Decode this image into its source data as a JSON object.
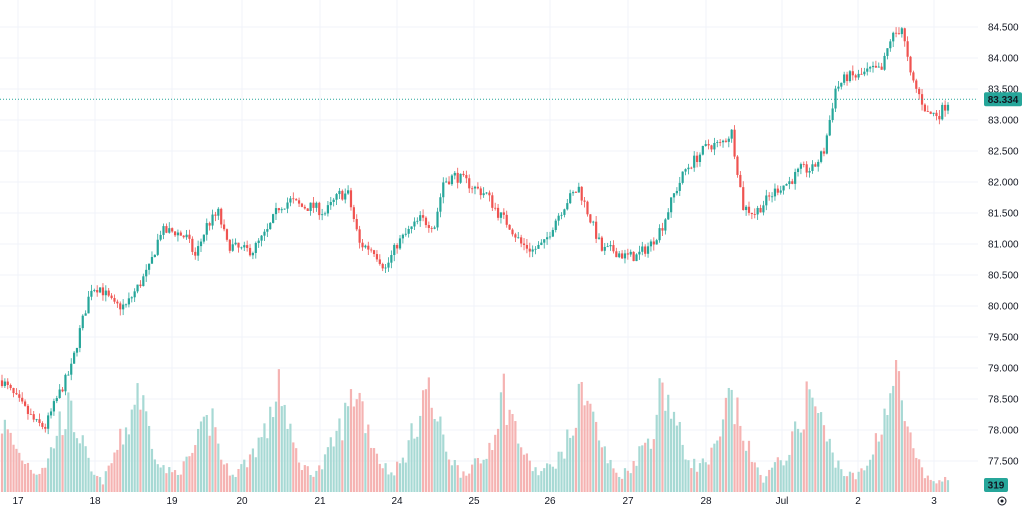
{
  "colors": {
    "up": "#26a69a",
    "down": "#ef5350",
    "volume_up": "#a7d9d4",
    "volume_down": "#f5b3b2",
    "grid": "#f0f3fa",
    "last_price_line": "#26a69a",
    "badge_text": "#ffffff"
  },
  "chart_data": {
    "type": "candlestick",
    "title": "",
    "xlabel": "",
    "ylabel": "",
    "ylim": [
      77.0,
      84.7
    ],
    "grid": true,
    "y_ticks": [
      "84.500",
      "84.000",
      "83.500",
      "83.000",
      "82.500",
      "82.000",
      "81.500",
      "81.000",
      "80.500",
      "80.000",
      "79.500",
      "79.000",
      "78.500",
      "78.000",
      "77.500"
    ],
    "x_ticks": [
      "17",
      "18",
      "19",
      "20",
      "21",
      "24",
      "25",
      "26",
      "27",
      "28",
      "Jul",
      "2",
      "3"
    ],
    "last_price": 83.334,
    "last_price_label": "83.334",
    "volume_label": "319",
    "price_anchors": [
      [
        0,
        78.8
      ],
      [
        5,
        78.5
      ],
      [
        12,
        78.1
      ],
      [
        15,
        78.05
      ],
      [
        19,
        78.5
      ],
      [
        24,
        79.0
      ],
      [
        27,
        79.6
      ],
      [
        31,
        80.3
      ],
      [
        34,
        80.3
      ],
      [
        39,
        80.0
      ],
      [
        43,
        80.0
      ],
      [
        47,
        80.3
      ],
      [
        51,
        80.6
      ],
      [
        55,
        81.2
      ],
      [
        60,
        81.2
      ],
      [
        64,
        81.1
      ],
      [
        67,
        80.8
      ],
      [
        71,
        81.3
      ],
      [
        75,
        81.5
      ],
      [
        78,
        81.0
      ],
      [
        83,
        80.9
      ],
      [
        87,
        80.9
      ],
      [
        92,
        81.2
      ],
      [
        96,
        81.6
      ],
      [
        100,
        81.7
      ],
      [
        104,
        81.6
      ],
      [
        108,
        81.6
      ],
      [
        112,
        81.5
      ],
      [
        117,
        81.8
      ],
      [
        120,
        81.8
      ],
      [
        124,
        81.0
      ],
      [
        129,
        80.9
      ],
      [
        133,
        80.6
      ],
      [
        137,
        81.0
      ],
      [
        141,
        81.2
      ],
      [
        145,
        81.4
      ],
      [
        150,
        81.3
      ],
      [
        153,
        82.0
      ],
      [
        157,
        82.1
      ],
      [
        161,
        82.0
      ],
      [
        164,
        81.9
      ],
      [
        168,
        81.8
      ],
      [
        172,
        81.5
      ],
      [
        176,
        81.3
      ],
      [
        180,
        81.0
      ],
      [
        184,
        80.9
      ],
      [
        188,
        81.0
      ],
      [
        192,
        81.4
      ],
      [
        196,
        81.7
      ],
      [
        200,
        81.9
      ],
      [
        204,
        81.4
      ],
      [
        208,
        80.9
      ],
      [
        212,
        80.9
      ],
      [
        216,
        80.8
      ],
      [
        220,
        80.8
      ],
      [
        225,
        81.0
      ],
      [
        229,
        81.3
      ],
      [
        233,
        81.8
      ],
      [
        237,
        82.2
      ],
      [
        241,
        82.4
      ],
      [
        245,
        82.6
      ],
      [
        249,
        82.6
      ],
      [
        253,
        82.8
      ],
      [
        257,
        81.6
      ],
      [
        261,
        81.5
      ],
      [
        265,
        81.7
      ],
      [
        269,
        81.9
      ],
      [
        273,
        82.0
      ],
      [
        277,
        82.2
      ],
      [
        281,
        82.2
      ],
      [
        285,
        82.5
      ],
      [
        289,
        83.5
      ],
      [
        293,
        83.7
      ],
      [
        297,
        83.7
      ],
      [
        301,
        83.8
      ],
      [
        305,
        83.8
      ],
      [
        308,
        84.3
      ],
      [
        312,
        84.5
      ],
      [
        315,
        83.7
      ],
      [
        318,
        83.4
      ],
      [
        321,
        83.1
      ],
      [
        325,
        83.1
      ],
      [
        328,
        83.3
      ]
    ],
    "volume_anchors": [
      [
        0,
        0.55
      ],
      [
        6,
        0.3
      ],
      [
        12,
        0.15
      ],
      [
        16,
        0.25
      ],
      [
        20,
        0.55
      ],
      [
        23,
        0.65
      ],
      [
        27,
        0.45
      ],
      [
        31,
        0.15
      ],
      [
        35,
        0.08
      ],
      [
        40,
        0.35
      ],
      [
        44,
        0.55
      ],
      [
        47,
        0.85
      ],
      [
        51,
        0.5
      ],
      [
        55,
        0.2
      ],
      [
        59,
        0.15
      ],
      [
        63,
        0.2
      ],
      [
        67,
        0.35
      ],
      [
        70,
        0.5
      ],
      [
        73,
        0.6
      ],
      [
        77,
        0.2
      ],
      [
        81,
        0.15
      ],
      [
        85,
        0.25
      ],
      [
        89,
        0.4
      ],
      [
        93,
        0.55
      ],
      [
        96,
        0.95
      ],
      [
        99,
        0.5
      ],
      [
        103,
        0.25
      ],
      [
        107,
        0.15
      ],
      [
        111,
        0.2
      ],
      [
        115,
        0.4
      ],
      [
        119,
        0.6
      ],
      [
        123,
        0.85
      ],
      [
        127,
        0.5
      ],
      [
        131,
        0.25
      ],
      [
        135,
        0.15
      ],
      [
        139,
        0.25
      ],
      [
        143,
        0.5
      ],
      [
        147,
        0.85
      ],
      [
        151,
        0.55
      ],
      [
        155,
        0.3
      ],
      [
        159,
        0.15
      ],
      [
        163,
        0.2
      ],
      [
        167,
        0.25
      ],
      [
        170,
        0.45
      ],
      [
        174,
        0.8
      ],
      [
        178,
        0.5
      ],
      [
        182,
        0.25
      ],
      [
        186,
        0.15
      ],
      [
        190,
        0.2
      ],
      [
        194,
        0.3
      ],
      [
        198,
        0.5
      ],
      [
        202,
        0.9
      ],
      [
        206,
        0.5
      ],
      [
        210,
        0.25
      ],
      [
        214,
        0.12
      ],
      [
        218,
        0.2
      ],
      [
        222,
        0.35
      ],
      [
        226,
        0.5
      ],
      [
        229,
        0.9
      ],
      [
        233,
        0.6
      ],
      [
        237,
        0.3
      ],
      [
        241,
        0.2
      ],
      [
        245,
        0.25
      ],
      [
        249,
        0.4
      ],
      [
        252,
        0.75
      ],
      [
        256,
        0.55
      ],
      [
        260,
        0.25
      ],
      [
        264,
        0.1
      ],
      [
        268,
        0.2
      ],
      [
        272,
        0.3
      ],
      [
        276,
        0.5
      ],
      [
        280,
        0.82
      ],
      [
        284,
        0.55
      ],
      [
        288,
        0.3
      ],
      [
        292,
        0.15
      ],
      [
        296,
        0.12
      ],
      [
        300,
        0.2
      ],
      [
        304,
        0.5
      ],
      [
        307,
        0.7
      ],
      [
        310,
        0.95
      ],
      [
        313,
        0.6
      ],
      [
        316,
        0.3
      ],
      [
        320,
        0.12
      ],
      [
        324,
        0.08
      ],
      [
        328,
        0.1
      ]
    ]
  }
}
